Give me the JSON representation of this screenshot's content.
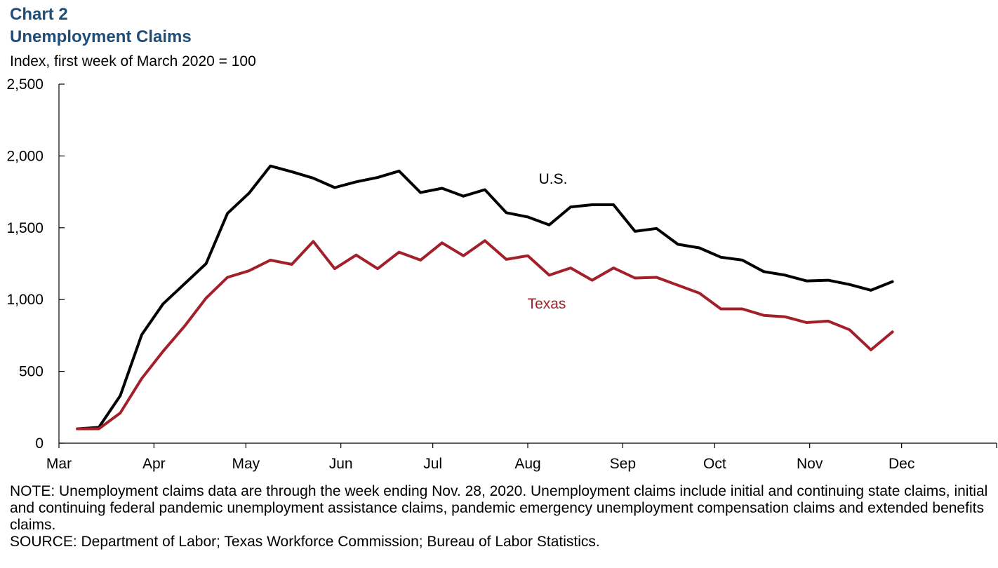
{
  "header": {
    "chart_label": "Chart 2",
    "title": "Unemployment Claims",
    "subtitle": "Index, first week of March 2020 = 100"
  },
  "footer": {
    "note": "NOTE: Unemployment claims data are through the week ending Nov. 28, 2020. Unemployment claims include initial and continuing state claims, initial and continuing federal pandemic unemployment assistance claims, pandemic emergency unemployment compensation claims and extended benefits claims.",
    "source": "SOURCE: Department of Labor; Texas Workforce Commission; Bureau of Labor Statistics."
  },
  "chart_data": {
    "type": "line",
    "title": "Unemployment Claims",
    "ylabel": "Index, first week of March 2020 = 100",
    "ylim": [
      0,
      2500
    ],
    "yticks": [
      0,
      500,
      1000,
      1500,
      2000,
      2500
    ],
    "ytick_labels": [
      "0",
      "500",
      "1,000",
      "1,500",
      "2,000",
      "2,500"
    ],
    "xticks": [
      "Mar",
      "Apr",
      "May",
      "Jun",
      "Jul",
      "Aug",
      "Sep",
      "Oct",
      "Nov",
      "Dec"
    ],
    "grid": false,
    "legend": "inline labels",
    "x": [
      "2020-03-07",
      "2020-03-14",
      "2020-03-21",
      "2020-03-28",
      "2020-04-04",
      "2020-04-11",
      "2020-04-18",
      "2020-04-25",
      "2020-05-02",
      "2020-05-09",
      "2020-05-16",
      "2020-05-23",
      "2020-05-30",
      "2020-06-06",
      "2020-06-13",
      "2020-06-20",
      "2020-06-27",
      "2020-07-04",
      "2020-07-11",
      "2020-07-18",
      "2020-07-25",
      "2020-08-01",
      "2020-08-08",
      "2020-08-15",
      "2020-08-22",
      "2020-08-29",
      "2020-09-05",
      "2020-09-12",
      "2020-09-19",
      "2020-09-26",
      "2020-10-03",
      "2020-10-10",
      "2020-10-17",
      "2020-10-24",
      "2020-10-31",
      "2020-11-07",
      "2020-11-14",
      "2020-11-21",
      "2020-11-28"
    ],
    "series": [
      {
        "name": "U.S.",
        "color": "#000000",
        "values": [
          100,
          110,
          330,
          755,
          970,
          1110,
          1250,
          1600,
          1740,
          1930,
          1890,
          1845,
          1780,
          1820,
          1850,
          1895,
          1745,
          1775,
          1720,
          1765,
          1605,
          1575,
          1520,
          1645,
          1660,
          1660,
          1475,
          1495,
          1385,
          1360,
          1295,
          1275,
          1195,
          1170,
          1130,
          1135,
          1105,
          1065,
          1125
        ]
      },
      {
        "name": "Texas",
        "color": "#a31f2a",
        "values": [
          100,
          100,
          210,
          450,
          640,
          815,
          1010,
          1155,
          1200,
          1275,
          1245,
          1405,
          1215,
          1310,
          1215,
          1330,
          1275,
          1395,
          1305,
          1410,
          1280,
          1305,
          1170,
          1220,
          1135,
          1220,
          1150,
          1155,
          1100,
          1045,
          935,
          935,
          890,
          880,
          840,
          850,
          790,
          650,
          775
        ]
      }
    ]
  }
}
